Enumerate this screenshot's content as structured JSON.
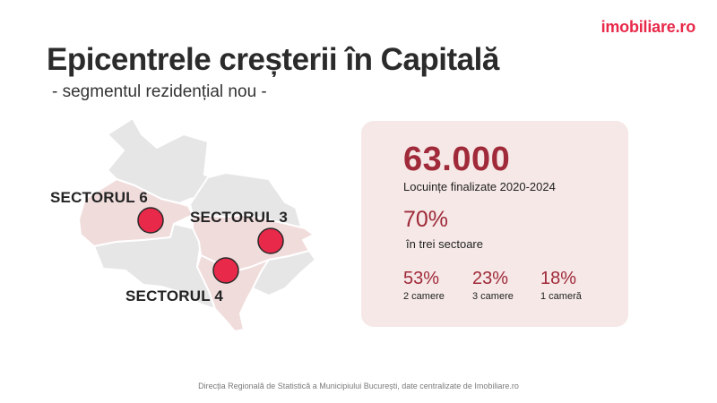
{
  "brand": {
    "logo_text": "imobiliare.ro",
    "accent": "#e8294a"
  },
  "header": {
    "title": "Epicentrele creșterii în Capitală",
    "subtitle": "- segmentul rezidențial nou -"
  },
  "map": {
    "sectors": [
      {
        "label": "SECTORUL 6"
      },
      {
        "label": "SECTORUL 3"
      },
      {
        "label": "SECTORUL 4"
      }
    ],
    "colors": {
      "district": "#e6e6e6",
      "highlight": "#f1dcdc",
      "marker": "#e8294a"
    }
  },
  "stats": {
    "total_value": "63.000",
    "total_caption": "Locuințe finalizate 2020-2024",
    "share_value": "70%",
    "share_caption": "în trei sectoare",
    "breakdown": [
      {
        "value": "53%",
        "label": "2 camere"
      },
      {
        "value": "23%",
        "label": "3 camere"
      },
      {
        "value": "18%",
        "label": "1 cameră"
      }
    ],
    "colors": {
      "card_bg": "#f5e8e7",
      "number": "#a02a39"
    }
  },
  "footer": {
    "source": "Direcția Regională de Statistică a Municipiului București, date centralizate de Imobiliare.ro"
  }
}
